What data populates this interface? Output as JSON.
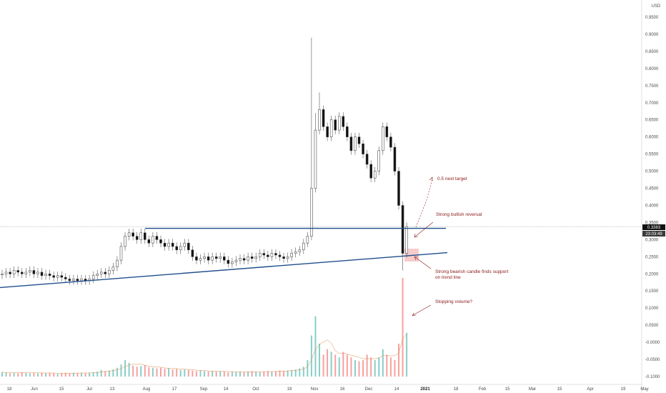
{
  "chart_data": {
    "type": "candlestick",
    "currency": "USD",
    "ylim": [
      -0.12,
      0.98
    ],
    "y_ticks": [
      "0.9500",
      "0.9000",
      "0.8500",
      "0.8000",
      "0.7500",
      "0.7000",
      "0.6500",
      "0.6000",
      "0.5500",
      "0.5000",
      "0.4500",
      "0.4000",
      "0.3500",
      "0.3000",
      "0.2500",
      "0.2000",
      "0.1500",
      "0.1000",
      "0.0500",
      "-0.0000",
      "-0.0500",
      "-0.1000"
    ],
    "x_ticks": [
      "18",
      "Jun",
      "15",
      "Jul",
      "13",
      "Aug",
      "17",
      "Sep",
      "14",
      "Oct",
      "19",
      "Nov",
      "16",
      "Dec",
      "14",
      "2021",
      "18",
      "Feb",
      "15",
      "Mar",
      "15",
      "Apr",
      "19",
      "May"
    ],
    "last_price": "0.3383",
    "countdown": "23:03:49",
    "resistance_level": 0.333,
    "support_trendline": [
      {
        "x": "May 18",
        "y": 0.16
      },
      {
        "x": "Jan 11",
        "y": 0.262
      }
    ],
    "annotations": [
      {
        "text": "0.5 next target"
      },
      {
        "text": "Strong bullish reversal"
      },
      {
        "text": "Strong bearish candle finds support"
      },
      {
        "text": "on trend line"
      },
      {
        "text": "Stopping volume?"
      }
    ],
    "price_closes": [
      0.2,
      0.205,
      0.2,
      0.21,
      0.205,
      0.2,
      0.205,
      0.21,
      0.2,
      0.205,
      0.195,
      0.2,
      0.195,
      0.19,
      0.195,
      0.19,
      0.185,
      0.18,
      0.185,
      0.18,
      0.185,
      0.18,
      0.185,
      0.195,
      0.2,
      0.205,
      0.2,
      0.21,
      0.22,
      0.24,
      0.28,
      0.31,
      0.32,
      0.31,
      0.3,
      0.32,
      0.3,
      0.29,
      0.31,
      0.3,
      0.29,
      0.28,
      0.29,
      0.28,
      0.27,
      0.28,
      0.29,
      0.27,
      0.25,
      0.24,
      0.245,
      0.25,
      0.24,
      0.25,
      0.245,
      0.25,
      0.24,
      0.23,
      0.235,
      0.24,
      0.245,
      0.24,
      0.25,
      0.245,
      0.25,
      0.26,
      0.255,
      0.25,
      0.26,
      0.255,
      0.25,
      0.245,
      0.25,
      0.26,
      0.265,
      0.27,
      0.29,
      0.31,
      0.45,
      0.62,
      0.68,
      0.63,
      0.6,
      0.65,
      0.62,
      0.66,
      0.63,
      0.6,
      0.56,
      0.6,
      0.58,
      0.55,
      0.52,
      0.48,
      0.5,
      0.56,
      0.63,
      0.6,
      0.57,
      0.5,
      0.4,
      0.26,
      0.3383
    ],
    "volumes": [
      0.008,
      0.007,
      0.006,
      0.007,
      0.006,
      0.008,
      0.007,
      0.006,
      0.007,
      0.006,
      0.007,
      0.006,
      0.007,
      0.006,
      0.005,
      0.006,
      0.007,
      0.006,
      0.007,
      0.006,
      0.007,
      0.006,
      0.007,
      0.008,
      0.009,
      0.012,
      0.01,
      0.011,
      0.013,
      0.016,
      0.022,
      0.03,
      0.025,
      0.02,
      0.018,
      0.019,
      0.021,
      0.017,
      0.016,
      0.015,
      0.016,
      0.014,
      0.015,
      0.013,
      0.014,
      0.012,
      0.013,
      0.012,
      0.011,
      0.01,
      0.011,
      0.01,
      0.009,
      0.01,
      0.009,
      0.01,
      0.009,
      0.008,
      0.009,
      0.008,
      0.009,
      0.008,
      0.009,
      0.01,
      0.009,
      0.008,
      0.009,
      0.01,
      0.009,
      0.01,
      0.011,
      0.01,
      0.011,
      0.012,
      0.013,
      0.015,
      0.018,
      0.03,
      0.075,
      0.11,
      0.06,
      0.04,
      0.05,
      0.045,
      0.04,
      0.035,
      0.045,
      0.04,
      0.035,
      0.03,
      0.028,
      0.03,
      0.04,
      0.035,
      0.03,
      0.035,
      0.05,
      0.04,
      0.035,
      0.03,
      0.06,
      0.18,
      0.08
    ]
  },
  "colors": {
    "up_candle": "#ffffff",
    "down_candle": "#111111",
    "wick": "#555555",
    "trendline": "#1f4e8c",
    "annotation": "#8b1a1a",
    "price_label_bg": "#3a3a3a",
    "volume_up": "#26a69a",
    "volume_down": "#ef5350",
    "support_box": "#f4b6b6"
  }
}
